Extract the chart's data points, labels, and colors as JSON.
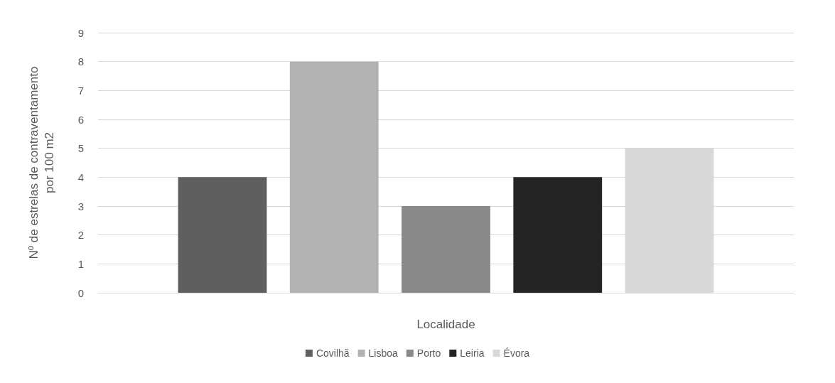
{
  "chart_data": {
    "type": "bar",
    "xlabel": "Localidade",
    "ylabel": "Nº de estrelas de contraventamento\npor 100 m2",
    "categories": [
      null
    ],
    "series": [
      {
        "name": "Covilhã",
        "color": "#5f5f5f",
        "values": [
          4
        ]
      },
      {
        "name": "Lisboa",
        "color": "#b2b2b2",
        "values": [
          8
        ]
      },
      {
        "name": "Porto",
        "color": "#898989",
        "values": [
          3
        ]
      },
      {
        "name": "Leiria",
        "color": "#242424",
        "values": [
          4
        ]
      },
      {
        "name": "Évora",
        "color": "#d9d9d9",
        "values": [
          5
        ]
      }
    ],
    "ylim": [
      0,
      9
    ],
    "yticks": [
      0,
      1,
      2,
      3,
      4,
      5,
      6,
      7,
      8,
      9
    ],
    "grid": "y",
    "legend": "bottom"
  }
}
